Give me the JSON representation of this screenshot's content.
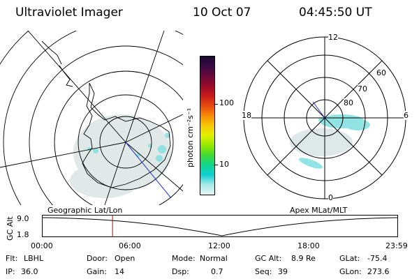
{
  "header": {
    "instrument": "Ultraviolet Imager",
    "date": "10 Oct 07",
    "time": "04:45:50 UT"
  },
  "colorbar": {
    "unit_label": "photon cm⁻²s⁻¹",
    "ticks": [
      "100",
      "10"
    ],
    "colors": [
      "#1a0a2e",
      "#3a0a44",
      "#6a0a3a",
      "#9a0a28",
      "#c81a1a",
      "#e84a10",
      "#f88a08",
      "#f8c808",
      "#e0f000",
      "#98e800",
      "#40d830",
      "#10d890",
      "#10d0d0",
      "#a8e8e8",
      "#e8f4f4"
    ]
  },
  "geo_map": {
    "caption": "Geographic Lat/Lon"
  },
  "polar_map": {
    "caption": "Apex MLat/MLT",
    "mlt_labels": {
      "top": "12",
      "left": "18",
      "right": "6",
      "bottom": "0"
    },
    "lat_labels": [
      "60",
      "70",
      "80"
    ]
  },
  "altitude_plot": {
    "ylabel": "GC Alt",
    "yticks": [
      "9.0",
      "1.8"
    ],
    "xticks": [
      "00:00",
      "06:00",
      "12:00",
      "18:00",
      "23:59"
    ],
    "marker_time_hours": 4.76,
    "marker_color": "#cc0000"
  },
  "info": {
    "flt_label": "Flt:",
    "flt_value": "LBHL",
    "door_label": "Door:",
    "door_value": "Open",
    "mode_label": "Mode:",
    "mode_value": "Normal",
    "gcalt_label": "GC Alt:",
    "gcalt_value": "8.9 Re",
    "glat_label": "GLat:",
    "glat_value": "-75.4",
    "ip_label": "IP:",
    "ip_value": "36.0",
    "gain_label": "Gain:",
    "gain_value": "14",
    "dsp_label": "Dsp:",
    "dsp_value": "0.7",
    "seq_label": "Seq:",
    "seq_value": "39",
    "glon_label": "GLon:",
    "glon_value": "273.6"
  }
}
